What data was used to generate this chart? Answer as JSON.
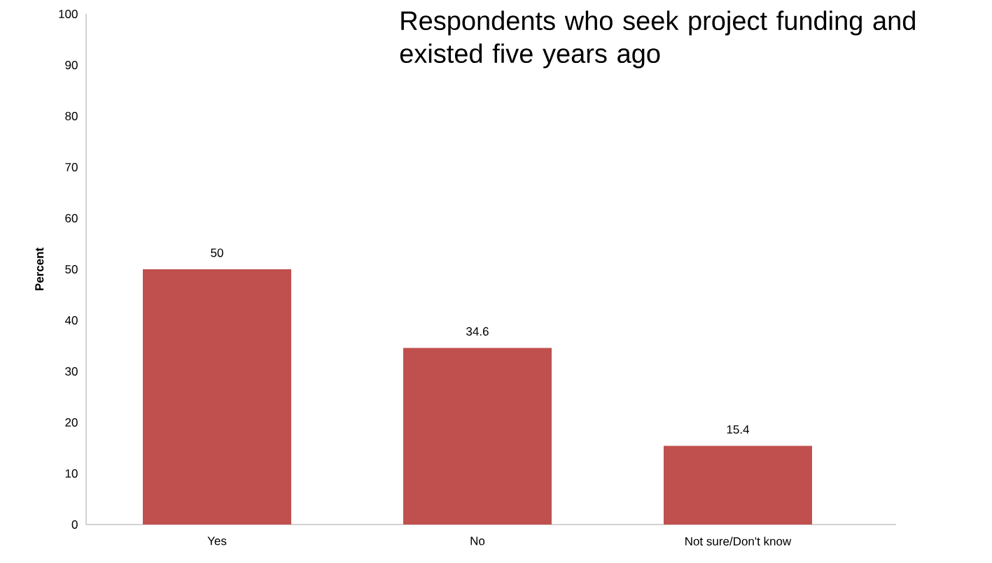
{
  "chart_data": {
    "type": "bar",
    "title": "Respondents who seek project funding and existed five years ago",
    "ylabel": "Percent",
    "categories": [
      "Yes",
      "No",
      "Not sure/Don't know"
    ],
    "values": [
      50,
      34.6,
      15.4
    ],
    "color": "#c0504d",
    "ylim": [
      0,
      100
    ],
    "yticks": [
      0,
      10,
      20,
      30,
      40,
      50,
      60,
      70,
      80,
      90,
      100
    ],
    "data_labels": true,
    "grid": false
  }
}
